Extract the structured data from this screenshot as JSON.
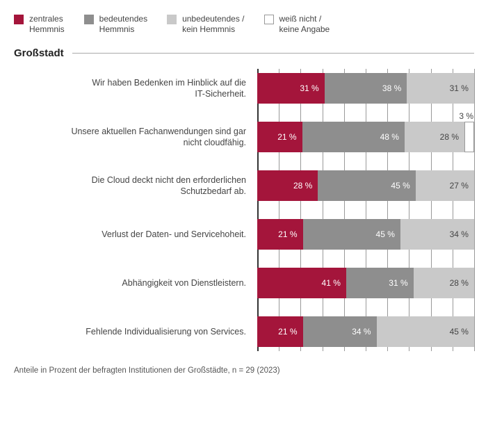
{
  "legend": [
    {
      "label": "zentrales\nHemmnis",
      "color": "#a4153b",
      "border": false,
      "textOnColor": "light"
    },
    {
      "label": "bedeutendes\nHemmnis",
      "color": "#8e8e8e",
      "border": false,
      "textOnColor": "light"
    },
    {
      "label": "unbedeutendes /\nkein Hemmnis",
      "color": "#c9c9c9",
      "border": false,
      "textOnColor": "dark"
    },
    {
      "label": "weiß nicht /\nkeine Angabe",
      "color": "#ffffff",
      "border": true,
      "textOnColor": "dark"
    }
  ],
  "section_title": "Großstadt",
  "xAxis": {
    "min": 0,
    "max": 100,
    "tickStep": 10
  },
  "barHeight": 44,
  "barGap": 26,
  "chart": {
    "items": [
      {
        "label": "Wir haben Bedenken im Hinblick auf die\nIT-Sicherheit.",
        "values": [
          31,
          38,
          31,
          0
        ]
      },
      {
        "label": "Unsere aktuellen Fachanwendungen sind gar\nnicht cloudfähig.",
        "values": [
          21,
          48,
          28,
          3
        ]
      },
      {
        "label": "Die Cloud deckt nicht den erforderlichen\nSchutzbedarf ab.",
        "values": [
          28,
          45,
          27,
          0
        ]
      },
      {
        "label": "Verlust der Daten- und Servicehoheit.",
        "values": [
          21,
          45,
          34,
          0
        ]
      },
      {
        "label": "Abhängigkeit von Dienstleistern.",
        "values": [
          41,
          31,
          28,
          0
        ]
      },
      {
        "label": "Fehlende Individualisierung von Services.",
        "values": [
          21,
          34,
          45,
          0
        ]
      }
    ]
  },
  "footnote": "Anteile in Prozent der befragten Institutionen der Großstädte, n = 29 (2023)"
}
